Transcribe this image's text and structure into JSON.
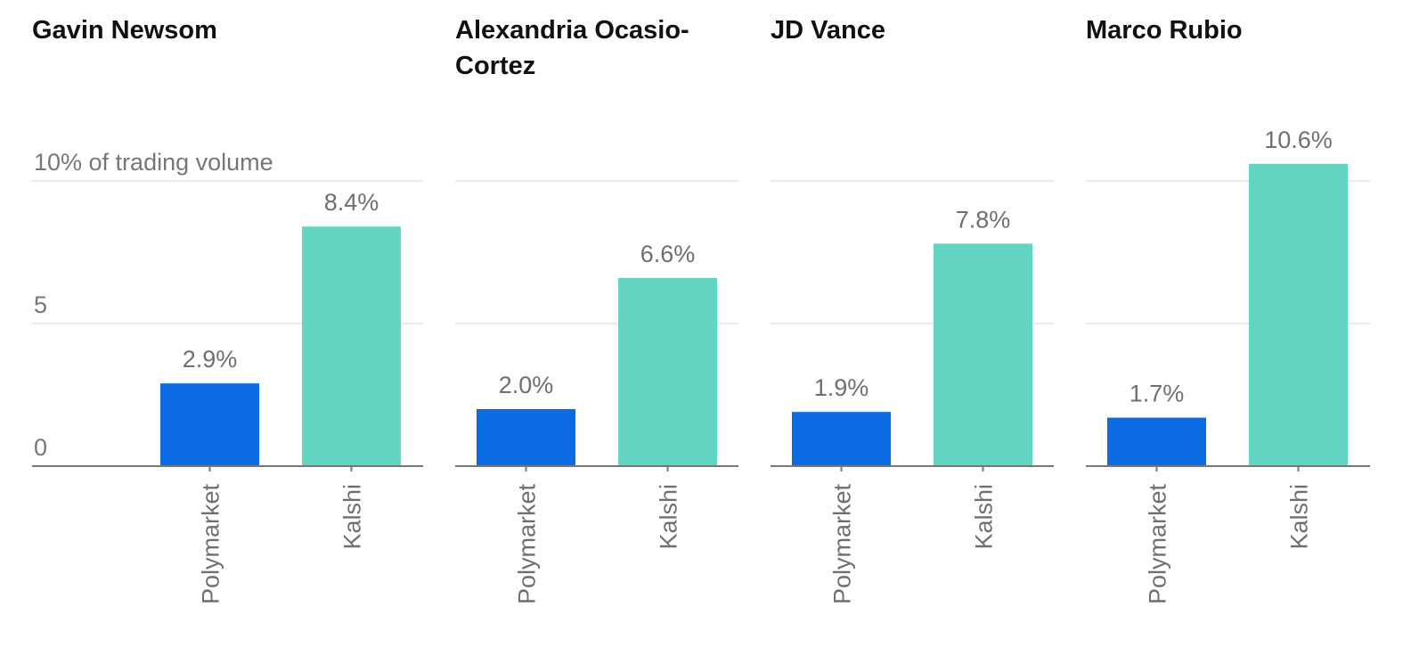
{
  "chart_data": [
    {
      "type": "bar",
      "title": "Gavin Newsom",
      "categories": [
        "Polymarket",
        "Kalshi"
      ],
      "values": [
        2.9,
        8.4
      ],
      "value_labels": [
        "2.9%",
        "8.4%"
      ],
      "ylim": [
        0,
        10
      ],
      "yticks": [
        0,
        5,
        10
      ],
      "ytick_labels": [
        "0",
        "5",
        "10% of trading volume"
      ],
      "grid": true
    },
    {
      "type": "bar",
      "title": "Alexandria Ocasio-Cortez",
      "categories": [
        "Polymarket",
        "Kalshi"
      ],
      "values": [
        2.0,
        6.6
      ],
      "value_labels": [
        "2.0%",
        "6.6%"
      ],
      "ylim": [
        0,
        10
      ],
      "yticks": [
        0,
        5,
        10
      ],
      "grid": true
    },
    {
      "type": "bar",
      "title": "JD Vance",
      "categories": [
        "Polymarket",
        "Kalshi"
      ],
      "values": [
        1.9,
        7.8
      ],
      "value_labels": [
        "1.9%",
        "7.8%"
      ],
      "ylim": [
        0,
        10
      ],
      "yticks": [
        0,
        5,
        10
      ],
      "grid": true
    },
    {
      "type": "bar",
      "title": "Marco Rubio",
      "categories": [
        "Polymarket",
        "Kalshi"
      ],
      "values": [
        1.7,
        10.6
      ],
      "value_labels": [
        "1.7%",
        "10.6%"
      ],
      "ylim": [
        0,
        10
      ],
      "yticks": [
        0,
        5,
        10
      ],
      "grid": true
    }
  ],
  "colors": {
    "Polymarket": "#0a6be3",
    "Kalshi": "#62d5c0",
    "grid": "#e3e3e3",
    "axis": "#777777"
  }
}
